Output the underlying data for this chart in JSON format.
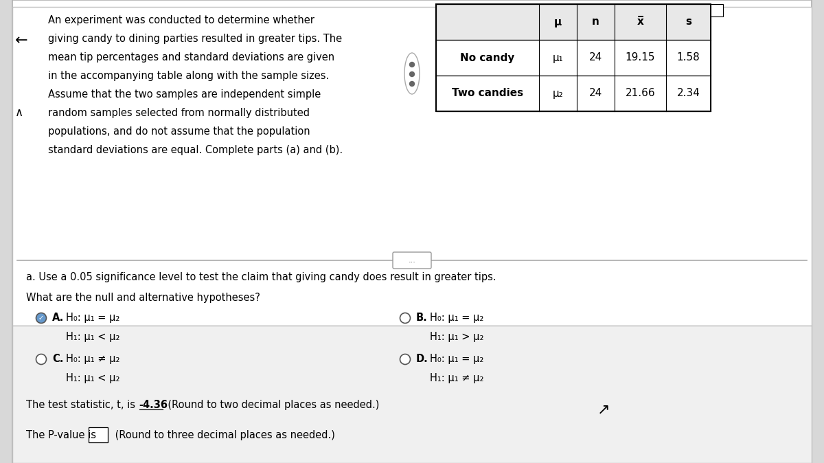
{
  "bg_color": "#d8d8d8",
  "panel_color": "#ffffff",
  "intro_text_lines": [
    "An experiment was conducted to determine whether",
    "giving candy to dining parties resulted in greater tips. The",
    "mean tip percentages and standard deviations are given",
    "in the accompanying table along with the sample sizes.",
    "Assume that the two samples are independent simple",
    "random samples selected from normally distributed",
    "populations, and do not assume that the population",
    "standard deviations are equal. Complete parts (a) and (b)."
  ],
  "table_headers": [
    "μ",
    "n",
    "x̅",
    "s"
  ],
  "table_rows": [
    [
      "No candy",
      "μ₁",
      "24",
      "19.15",
      "1.58"
    ],
    [
      "Two candies",
      "μ₂",
      "24",
      "21.66",
      "2.34"
    ]
  ],
  "part_a_text": "a. Use a 0.05 significance level to test the claim that giving candy does result in greater tips.",
  "hypotheses_label": "What are the null and alternative hypotheses?",
  "option_A_label": "A.",
  "option_A_h0": "H₀: μ₁ = μ₂",
  "option_A_h1": "H₁: μ₁ < μ₂",
  "option_A_selected": true,
  "option_B_label": "B.",
  "option_B_h0": "H₀: μ₁ = μ₂",
  "option_B_h1": "H₁: μ₁ > μ₂",
  "option_B_selected": false,
  "option_C_label": "C.",
  "option_C_h0": "H₀: μ₁ ≠ μ₂",
  "option_C_h1": "H₁: μ₁ < μ₂",
  "option_C_selected": false,
  "option_D_label": "D.",
  "option_D_h0": "H₀: μ₁ = μ₂",
  "option_D_h1": "H₁: μ₁ ≠ μ₂",
  "option_D_selected": false,
  "test_stat_prefix": "The test statistic, t, is  ",
  "test_stat_value": "-4.36",
  "test_stat_suffix": ". (Round to two decimal places as needed.)",
  "pvalue_prefix": "The P-value is",
  "pvalue_suffix": " (Round to three decimal places as needed.)",
  "separator_text": "...",
  "left_arrow": "←",
  "up_arrow": "∧"
}
